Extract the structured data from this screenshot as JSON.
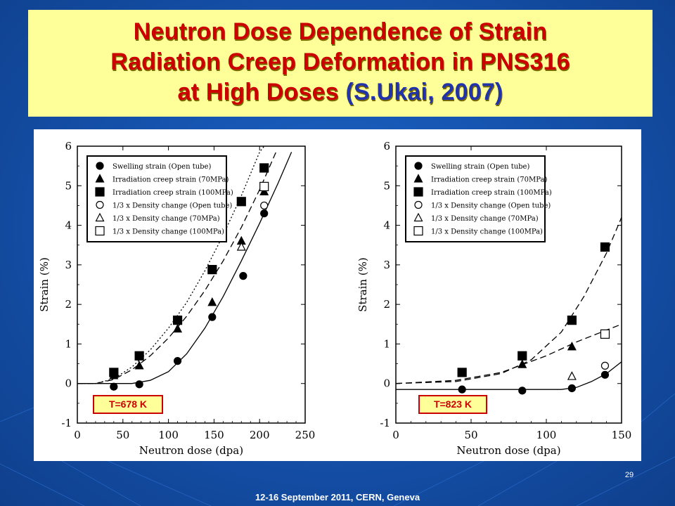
{
  "slide": {
    "title_line1": "Neutron Dose Dependence of Strain",
    "title_line2": "Radiation Creep Deformation in PNS316",
    "title_line3_main": "at High Doses",
    "title_line3_cite": "(S.Ukai, 2007)",
    "page_number": "29",
    "footer": "12-16  September 2011, CERN, Geneva",
    "colors": {
      "title_text": "#cc0000",
      "citation_text": "#2233aa",
      "title_background": "#ffff99",
      "slide_background": "#1553ae"
    }
  },
  "chart_data": [
    {
      "type": "scatter",
      "annotation": "T=678 K",
      "xlabel": "Neutron dose (dpa)",
      "ylabel": "Strain  (%)",
      "xlim": [
        0,
        250
      ],
      "ylim": [
        -1,
        6
      ],
      "xticks": [
        0,
        50,
        100,
        150,
        200,
        250
      ],
      "yticks": [
        -1,
        0,
        1,
        2,
        3,
        4,
        5,
        6
      ],
      "legend_position": "top-left",
      "series": [
        {
          "name": "Swelling strain (Open tube)",
          "marker": "circle-filled",
          "points": [
            [
              40,
              -0.08
            ],
            [
              68,
              -0.02
            ],
            [
              110,
              0.57
            ],
            [
              148,
              1.68
            ],
            [
              182,
              2.72
            ],
            [
              205,
              4.3
            ]
          ]
        },
        {
          "name": "Irradiation creep strain (70MPa)",
          "marker": "triangle-filled",
          "points": [
            [
              40,
              0.2
            ],
            [
              68,
              0.45
            ],
            [
              110,
              1.38
            ],
            [
              148,
              2.05
            ],
            [
              180,
              3.6
            ],
            [
              205,
              4.85
            ]
          ]
        },
        {
          "name": "Irradiation creep strain (100MPa)",
          "marker": "square-filled",
          "points": [
            [
              40,
              0.28
            ],
            [
              68,
              0.7
            ],
            [
              110,
              1.6
            ],
            [
              148,
              2.88
            ],
            [
              180,
              4.6
            ],
            [
              205,
              5.45
            ]
          ]
        },
        {
          "name": "1/3 x Density change (Open tube)",
          "marker": "circle-open",
          "points": [
            [
              205,
              4.5
            ]
          ]
        },
        {
          "name": "1/3 x Density change (70MPa)",
          "marker": "triangle-open",
          "points": [
            [
              180,
              3.45
            ]
          ]
        },
        {
          "name": "1/3 x Density change (100MPa)",
          "marker": "square-open",
          "points": [
            [
              205,
              4.98
            ]
          ]
        }
      ],
      "curves": [
        {
          "style": "solid",
          "points": [
            [
              0,
              0
            ],
            [
              60,
              0
            ],
            [
              80,
              0.08
            ],
            [
              100,
              0.3
            ],
            [
              120,
              0.75
            ],
            [
              140,
              1.4
            ],
            [
              160,
              2.2
            ],
            [
              180,
              3.1
            ],
            [
              200,
              4.05
            ],
            [
              220,
              5.05
            ],
            [
              235,
              5.85
            ]
          ]
        },
        {
          "style": "dashed",
          "points": [
            [
              0,
              0
            ],
            [
              20,
              0
            ],
            [
              40,
              0.1
            ],
            [
              60,
              0.35
            ],
            [
              80,
              0.7
            ],
            [
              100,
              1.15
            ],
            [
              120,
              1.7
            ],
            [
              140,
              2.35
            ],
            [
              160,
              3.1
            ],
            [
              180,
              3.95
            ],
            [
              200,
              4.9
            ],
            [
              218,
              5.85
            ]
          ]
        },
        {
          "style": "dotted",
          "points": [
            [
              0,
              0
            ],
            [
              20,
              0
            ],
            [
              40,
              0.12
            ],
            [
              60,
              0.42
            ],
            [
              80,
              0.85
            ],
            [
              100,
              1.4
            ],
            [
              120,
              2.05
            ],
            [
              140,
              2.85
            ],
            [
              160,
              3.75
            ],
            [
              180,
              4.75
            ],
            [
              200,
              5.85
            ],
            [
              205,
              6.0
            ]
          ]
        }
      ]
    },
    {
      "type": "scatter",
      "annotation": "T=823 K",
      "xlabel": "Neutron dose (dpa)",
      "ylabel": "Strain  (%)",
      "xlim": [
        0,
        150
      ],
      "ylim": [
        -1,
        6
      ],
      "xticks": [
        0,
        50,
        100,
        150
      ],
      "yticks": [
        -1,
        0,
        1,
        2,
        3,
        4,
        5,
        6
      ],
      "legend_position": "top-left",
      "series": [
        {
          "name": "Swelling strain (Open tube)",
          "marker": "circle-filled",
          "points": [
            [
              44,
              -0.15
            ],
            [
              84,
              -0.18
            ],
            [
              117,
              -0.12
            ],
            [
              139,
              0.22
            ]
          ]
        },
        {
          "name": "Irradiation creep strain (70MPa)",
          "marker": "triangle-filled",
          "points": [
            [
              84,
              0.48
            ],
            [
              117,
              0.93
            ]
          ]
        },
        {
          "name": "Irradiation creep strain (100MPa)",
          "marker": "square-filled",
          "points": [
            [
              44,
              0.28
            ],
            [
              84,
              0.7
            ],
            [
              117,
              1.6
            ],
            [
              139,
              3.45
            ]
          ]
        },
        {
          "name": "1/3 x Density change (Open tube)",
          "marker": "circle-open",
          "points": [
            [
              139,
              0.45
            ]
          ]
        },
        {
          "name": "1/3 x Density change (70MPa)",
          "marker": "triangle-open",
          "points": [
            [
              117,
              0.18
            ]
          ]
        },
        {
          "name": "1/3 x Density change (100MPa)",
          "marker": "square-open",
          "points": [
            [
              139,
              1.25
            ]
          ]
        }
      ],
      "curves": [
        {
          "style": "solid",
          "points": [
            [
              0,
              -0.15
            ],
            [
              110,
              -0.15
            ],
            [
              120,
              -0.1
            ],
            [
              130,
              0.05
            ],
            [
              140,
              0.25
            ],
            [
              150,
              0.55
            ]
          ]
        },
        {
          "style": "dashed",
          "points": [
            [
              0,
              0
            ],
            [
              40,
              0.08
            ],
            [
              70,
              0.28
            ],
            [
              100,
              0.7
            ],
            [
              120,
              1.05
            ],
            [
              140,
              1.35
            ],
            [
              150,
              1.5
            ]
          ]
        },
        {
          "style": "dashed",
          "points": [
            [
              0,
              0
            ],
            [
              40,
              0.05
            ],
            [
              70,
              0.25
            ],
            [
              90,
              0.6
            ],
            [
              110,
              1.3
            ],
            [
              125,
              2.2
            ],
            [
              140,
              3.3
            ],
            [
              150,
              4.2
            ]
          ]
        }
      ]
    }
  ]
}
